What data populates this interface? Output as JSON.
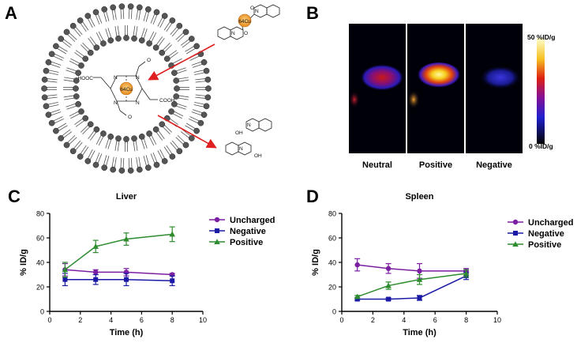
{
  "panels": {
    "a": {
      "letter": "A"
    },
    "b": {
      "letter": "B"
    },
    "c": {
      "letter": "C"
    },
    "d": {
      "letter": "D"
    }
  },
  "molecule": {
    "cu_label": "64Cu",
    "acid_left": "HOOC",
    "acid_right": "COOH",
    "hydroxy": "OH",
    "nitrogen": "N",
    "oxygen": "O"
  },
  "pet": {
    "labels": [
      "Neutral",
      "Positive",
      "Negative"
    ],
    "scale_max": "50 %ID/g",
    "scale_min": "0 %ID/g"
  },
  "chart_data": [
    {
      "type": "line",
      "title": "Liver",
      "xlabel": "Time (h)",
      "ylabel": "% ID/g",
      "xlim": [
        0,
        10
      ],
      "ylim": [
        0,
        80
      ],
      "xticks": [
        0,
        2,
        4,
        6,
        8,
        10
      ],
      "yticks": [
        0,
        20,
        40,
        60,
        80
      ],
      "legend_position": "right",
      "x": [
        1,
        3,
        5,
        8
      ],
      "series": [
        {
          "name": "Uncharged",
          "color": "#7b1fa2",
          "marker": "circle",
          "values": [
            34,
            32,
            32,
            30
          ],
          "errors": [
            5,
            2,
            3,
            1
          ]
        },
        {
          "name": "Negative",
          "color": "#1a1aa6",
          "marker": "square",
          "values": [
            26,
            26,
            26,
            25
          ],
          "errors": [
            5,
            4,
            5,
            4
          ]
        },
        {
          "name": "Positive",
          "color": "#2e8b2e",
          "marker": "triangle",
          "values": [
            34,
            53,
            59,
            63
          ],
          "errors": [
            6,
            5,
            5,
            6
          ]
        }
      ]
    },
    {
      "type": "line",
      "title": "Spleen",
      "xlabel": "Time (h)",
      "ylabel": "% ID/g",
      "xlim": [
        0,
        10
      ],
      "ylim": [
        0,
        80
      ],
      "xticks": [
        0,
        2,
        4,
        6,
        8,
        10
      ],
      "yticks": [
        0,
        20,
        40,
        60,
        80
      ],
      "legend_position": "right",
      "x": [
        1,
        3,
        5,
        8
      ],
      "series": [
        {
          "name": "Uncharged",
          "color": "#7b1fa2",
          "marker": "circle",
          "values": [
            38,
            35,
            33,
            33
          ],
          "errors": [
            5,
            4,
            6,
            2
          ]
        },
        {
          "name": "Negative",
          "color": "#1a1aa6",
          "marker": "square",
          "values": [
            10,
            10,
            11,
            29
          ],
          "errors": [
            1,
            1,
            2,
            3
          ]
        },
        {
          "name": "Positive",
          "color": "#2e8b2e",
          "marker": "triangle",
          "values": [
            12,
            21,
            26,
            31
          ],
          "errors": [
            1,
            3,
            4,
            3
          ]
        }
      ]
    }
  ]
}
